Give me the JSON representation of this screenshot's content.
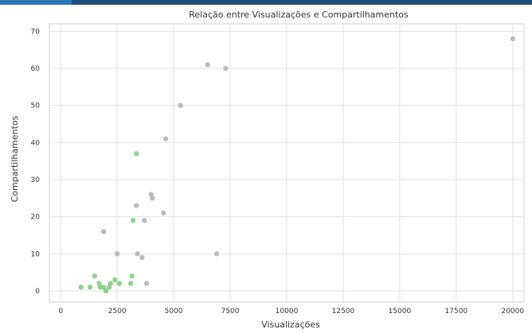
{
  "chart_data": {
    "type": "scatter",
    "title": "Relação entre Visualizações e Compartilhamentos",
    "xlabel": "Visualizações",
    "ylabel": "Compartilhamentos",
    "xlim": [
      -500,
      20500
    ],
    "ylim": [
      -3,
      72
    ],
    "xticks": [
      0,
      2500,
      5000,
      7500,
      10000,
      12500,
      15000,
      17500,
      20000
    ],
    "xtick_labels": [
      "0",
      "2500",
      "5000",
      "7500",
      "10000",
      "12500",
      "15000",
      "17500",
      "20000"
    ],
    "yticks": [
      0,
      10,
      20,
      30,
      40,
      50,
      60,
      70
    ],
    "ytick_labels": [
      "0",
      "10",
      "20",
      "30",
      "40",
      "50",
      "60",
      "70"
    ],
    "grid": true,
    "point_colors": {
      "green": "#7fc97f",
      "gray": "#b0b0b0"
    },
    "points": [
      {
        "x": 20000,
        "y": 68,
        "c": "gray"
      },
      {
        "x": 6500,
        "y": 61,
        "c": "gray"
      },
      {
        "x": 7300,
        "y": 60,
        "c": "gray"
      },
      {
        "x": 5300,
        "y": 50,
        "c": "gray"
      },
      {
        "x": 4650,
        "y": 41,
        "c": "gray"
      },
      {
        "x": 3350,
        "y": 37,
        "c": "green"
      },
      {
        "x": 4000,
        "y": 26,
        "c": "gray"
      },
      {
        "x": 4050,
        "y": 25,
        "c": "gray"
      },
      {
        "x": 3350,
        "y": 23,
        "c": "gray"
      },
      {
        "x": 4550,
        "y": 21,
        "c": "gray"
      },
      {
        "x": 3200,
        "y": 19,
        "c": "green"
      },
      {
        "x": 3700,
        "y": 19,
        "c": "gray"
      },
      {
        "x": 1900,
        "y": 16,
        "c": "gray"
      },
      {
        "x": 2500,
        "y": 10,
        "c": "gray"
      },
      {
        "x": 3400,
        "y": 10,
        "c": "gray"
      },
      {
        "x": 3600,
        "y": 9,
        "c": "gray"
      },
      {
        "x": 6900,
        "y": 10,
        "c": "gray"
      },
      {
        "x": 3150,
        "y": 4,
        "c": "green"
      },
      {
        "x": 3100,
        "y": 2,
        "c": "green"
      },
      {
        "x": 3800,
        "y": 2,
        "c": "gray"
      },
      {
        "x": 1500,
        "y": 4,
        "c": "green"
      },
      {
        "x": 1700,
        "y": 2,
        "c": "green"
      },
      {
        "x": 1900,
        "y": 1,
        "c": "green"
      },
      {
        "x": 2000,
        "y": 0,
        "c": "green"
      },
      {
        "x": 2200,
        "y": 2,
        "c": "green"
      },
      {
        "x": 2400,
        "y": 3,
        "c": "green"
      },
      {
        "x": 2600,
        "y": 2,
        "c": "green"
      },
      {
        "x": 1300,
        "y": 1,
        "c": "green"
      },
      {
        "x": 900,
        "y": 1,
        "c": "green"
      },
      {
        "x": 1750,
        "y": 1,
        "c": "green"
      },
      {
        "x": 2150,
        "y": 1,
        "c": "green"
      }
    ]
  }
}
